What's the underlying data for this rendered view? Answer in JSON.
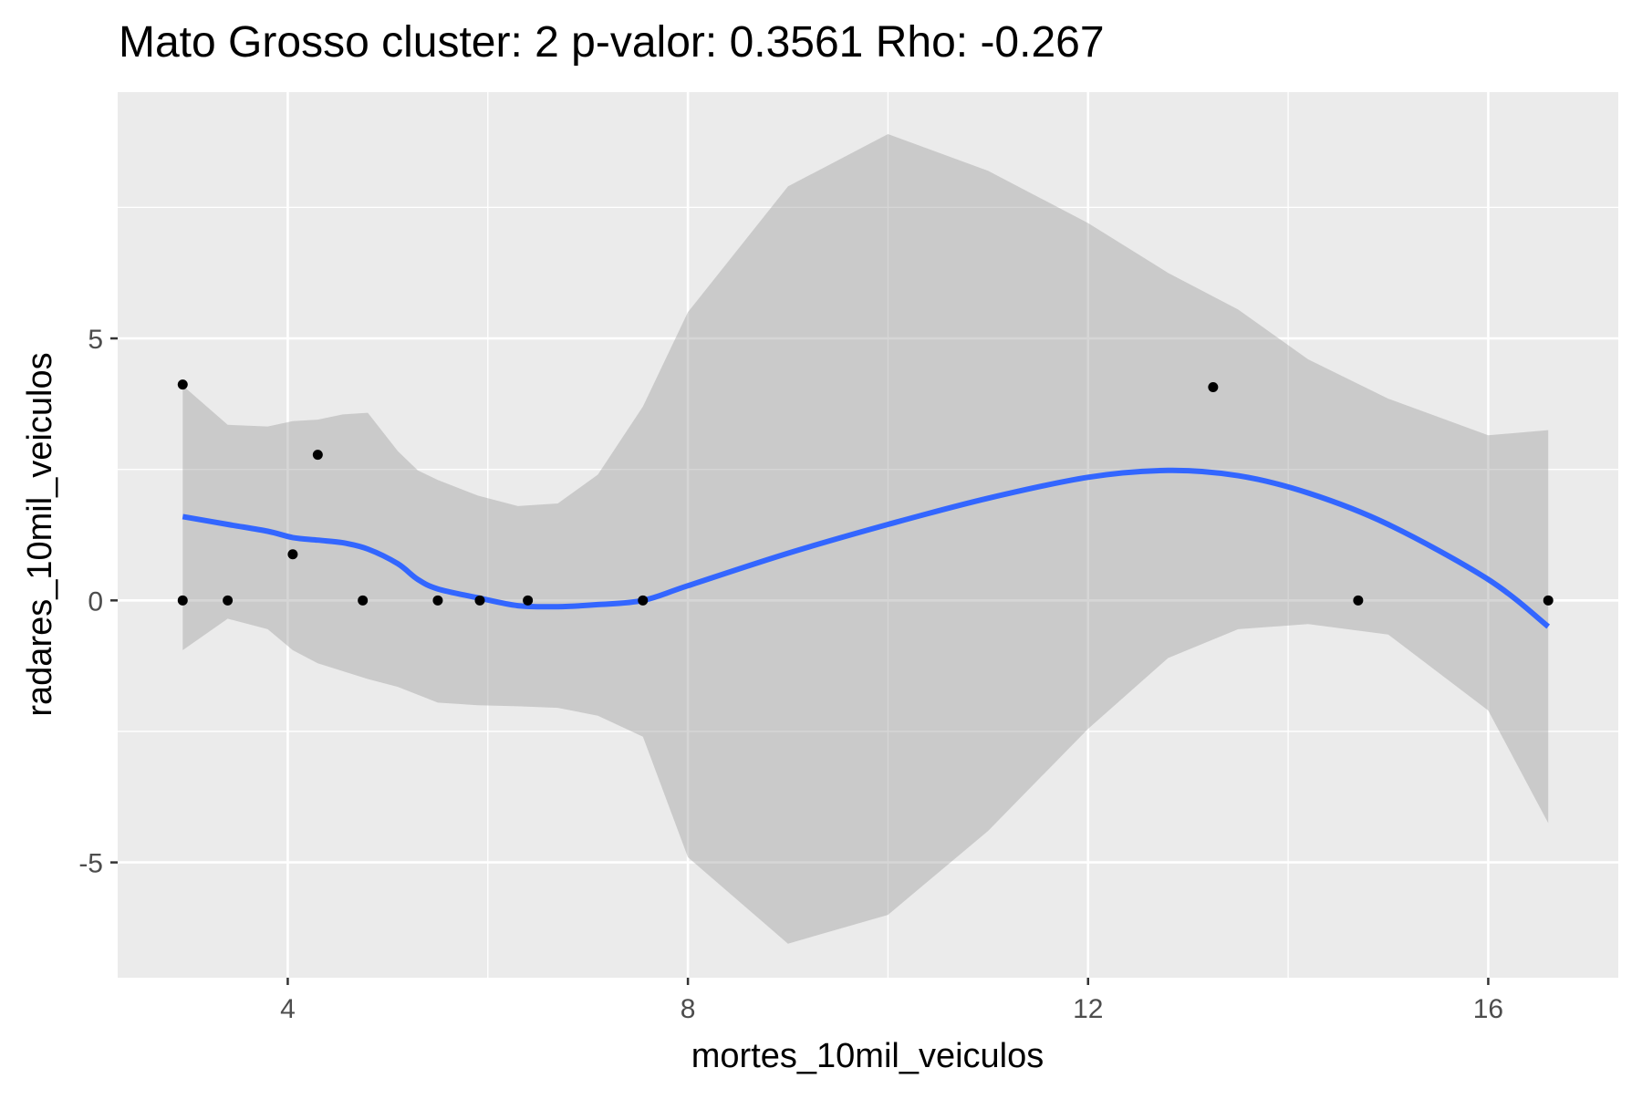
{
  "chart_data": {
    "type": "scatter",
    "title": "Mato Grosso cluster: 2 p-valor: 0.3561 Rho: -0.267",
    "xlabel": "mortes_10mil_veiculos",
    "ylabel": "radares_10mil_veiculos",
    "xlim": [
      2.3,
      17.3
    ],
    "ylim": [
      -7.2,
      9.7
    ],
    "xticks": [
      4,
      8,
      12,
      16
    ],
    "xtick_labels": [
      "4",
      "8",
      "12",
      "16"
    ],
    "yticks": [
      -5,
      0,
      5
    ],
    "ytick_labels": [
      "-5",
      "0",
      "5"
    ],
    "grid": true,
    "background": "#ebebeb",
    "points": [
      {
        "x": 2.95,
        "y": 4.12
      },
      {
        "x": 2.95,
        "y": 0.0
      },
      {
        "x": 3.4,
        "y": 0.0
      },
      {
        "x": 4.05,
        "y": 0.88
      },
      {
        "x": 4.3,
        "y": 2.78
      },
      {
        "x": 4.75,
        "y": 0.0
      },
      {
        "x": 5.5,
        "y": 0.0
      },
      {
        "x": 5.92,
        "y": 0.0
      },
      {
        "x": 6.4,
        "y": 0.0
      },
      {
        "x": 7.55,
        "y": 0.0
      },
      {
        "x": 13.25,
        "y": 4.07
      },
      {
        "x": 14.7,
        "y": 0.0
      },
      {
        "x": 16.6,
        "y": 0.0
      }
    ],
    "smooth": {
      "x": [
        2.95,
        3.4,
        3.8,
        4.05,
        4.3,
        4.55,
        4.8,
        5.1,
        5.3,
        5.5,
        5.9,
        6.3,
        6.7,
        7.1,
        7.55,
        8.0,
        9.0,
        10.0,
        11.0,
        12.0,
        12.8,
        13.5,
        14.2,
        15.0,
        16.0,
        16.6
      ],
      "y": [
        1.6,
        1.45,
        1.32,
        1.2,
        1.15,
        1.1,
        0.98,
        0.7,
        0.4,
        0.22,
        0.05,
        -0.1,
        -0.12,
        -0.08,
        0.0,
        0.28,
        0.9,
        1.45,
        1.95,
        2.35,
        2.48,
        2.38,
        2.05,
        1.45,
        0.4,
        -0.5
      ],
      "upper": [
        4.1,
        3.35,
        3.32,
        3.42,
        3.45,
        3.55,
        3.58,
        2.85,
        2.48,
        2.3,
        2.0,
        1.8,
        1.85,
        2.4,
        3.7,
        5.5,
        7.9,
        8.9,
        8.2,
        7.2,
        6.25,
        5.55,
        4.6,
        3.85,
        3.15,
        3.25
      ],
      "lower": [
        -0.95,
        -0.35,
        -0.55,
        -0.95,
        -1.2,
        -1.35,
        -1.5,
        -1.65,
        -1.8,
        -1.95,
        -2.0,
        -2.02,
        -2.05,
        -2.2,
        -2.6,
        -4.9,
        -6.55,
        -6.0,
        -4.4,
        -2.45,
        -1.1,
        -0.55,
        -0.45,
        -0.65,
        -2.1,
        -4.25
      ]
    },
    "colors": {
      "points": "#000000",
      "line": "#3366ff",
      "band": "#999999",
      "grid": "#ffffff",
      "ticks": "#333333"
    }
  }
}
